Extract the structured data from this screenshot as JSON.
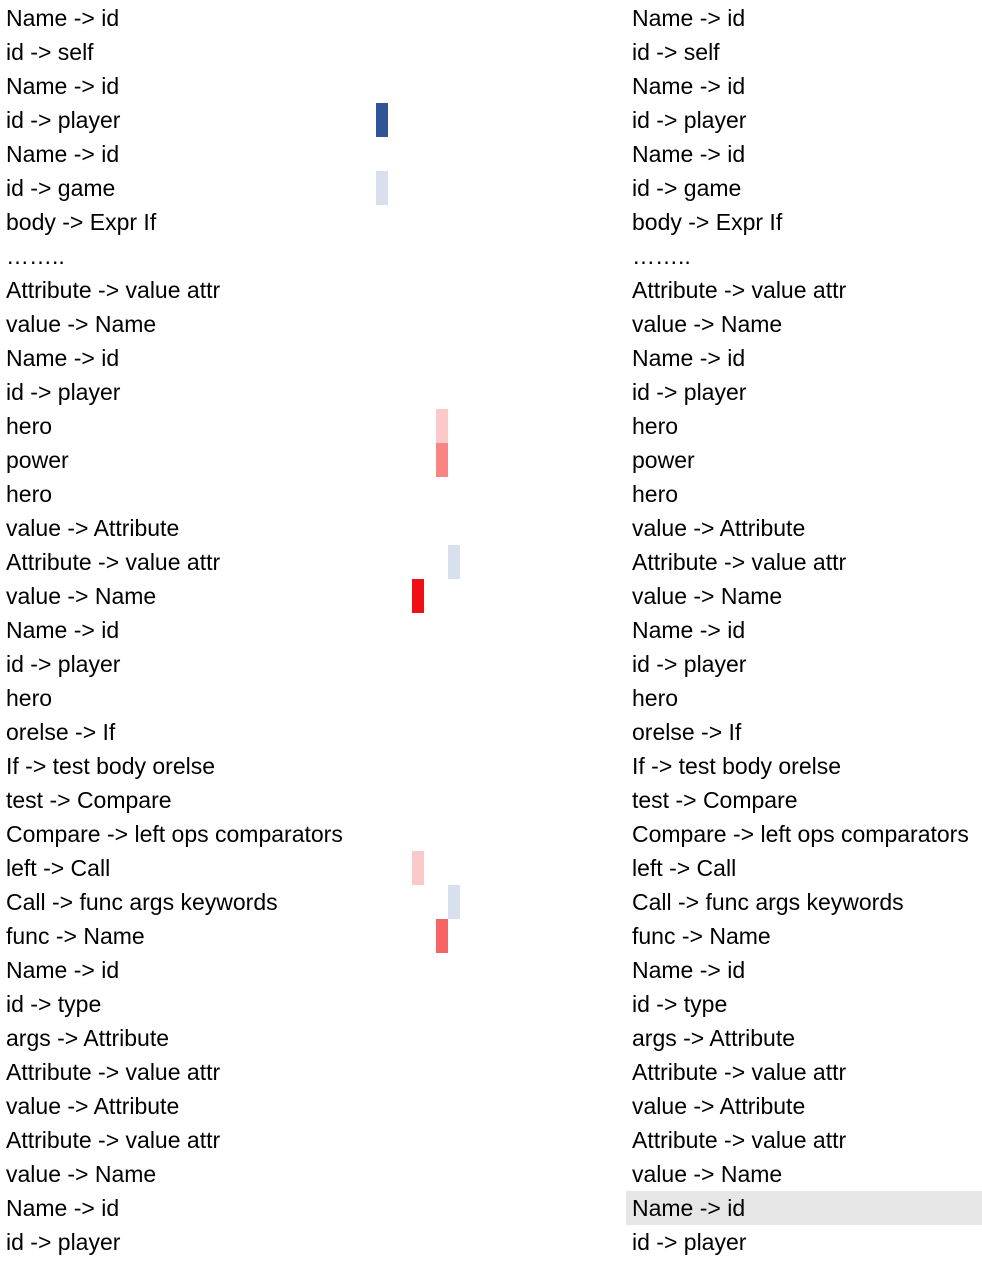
{
  "left_rules": [
    {
      "text": "Name -> id"
    },
    {
      "text": "id -> self"
    },
    {
      "text": "Name -> id"
    },
    {
      "text": "id -> player",
      "cells": [
        {
          "slot": 0,
          "color": "#2e5597"
        }
      ]
    },
    {
      "text": "Name -> id"
    },
    {
      "text": "id -> game",
      "cells": [
        {
          "slot": 0,
          "color": "#d9e0ed"
        }
      ]
    },
    {
      "text": "body -> Expr If"
    },
    {
      "text": "…….."
    },
    {
      "text": "Attribute -> value attr"
    },
    {
      "text": "value -> Name"
    },
    {
      "text": "Name -> id"
    },
    {
      "text": "id -> player"
    },
    {
      "text": "hero",
      "cells": [
        {
          "slot": 5,
          "color": "#fbc9c9"
        }
      ]
    },
    {
      "text": "power",
      "cells": [
        {
          "slot": 5,
          "color": "#f88484"
        }
      ]
    },
    {
      "text": "hero"
    },
    {
      "text": "value -> Attribute"
    },
    {
      "text": "Attribute -> value attr",
      "cells": [
        {
          "slot": 6,
          "color": "#d9e0ed"
        }
      ]
    },
    {
      "text": "value -> Name",
      "cells": [
        {
          "slot": 3,
          "color": "#ef0f14"
        }
      ]
    },
    {
      "text": "Name -> id"
    },
    {
      "text": "id -> player"
    },
    {
      "text": "hero"
    },
    {
      "text": "orelse -> If"
    },
    {
      "text": "If -> test body orelse"
    },
    {
      "text": "test -> Compare"
    },
    {
      "text": "Compare -> left ops comparators"
    },
    {
      "text": "left -> Call",
      "cells": [
        {
          "slot": 3,
          "color": "#fbc9c9"
        }
      ]
    },
    {
      "text": "Call -> func args keywords",
      "cells": [
        {
          "slot": 6,
          "color": "#d9e0ed"
        }
      ]
    },
    {
      "text": "func -> Name",
      "cells": [
        {
          "slot": 5,
          "color": "#f66466"
        }
      ]
    },
    {
      "text": "Name -> id"
    },
    {
      "text": "id -> type"
    },
    {
      "text": "args -> Attribute"
    },
    {
      "text": "Attribute -> value attr"
    },
    {
      "text": "value -> Attribute"
    },
    {
      "text": "Attribute -> value attr"
    },
    {
      "text": "value -> Name"
    },
    {
      "text": "Name -> id"
    },
    {
      "text": "id -> player"
    }
  ],
  "right_rules": [
    {
      "text": "Name -> id"
    },
    {
      "text": "id -> self"
    },
    {
      "text": "Name -> id"
    },
    {
      "text": "id -> player"
    },
    {
      "text": "Name -> id"
    },
    {
      "text": "id -> game"
    },
    {
      "text": "body -> Expr If"
    },
    {
      "text": "…….."
    },
    {
      "text": "Attribute -> value attr"
    },
    {
      "text": "value -> Name"
    },
    {
      "text": "Name -> id"
    },
    {
      "text": "id -> player"
    },
    {
      "text": "hero"
    },
    {
      "text": "power"
    },
    {
      "text": "hero"
    },
    {
      "text": "value -> Attribute"
    },
    {
      "text": "Attribute -> value attr"
    },
    {
      "text": "value -> Name"
    },
    {
      "text": "Name -> id"
    },
    {
      "text": "id -> player"
    },
    {
      "text": "hero"
    },
    {
      "text": "orelse -> If"
    },
    {
      "text": "If -> test body orelse"
    },
    {
      "text": "test -> Compare"
    },
    {
      "text": "Compare -> left ops comparators"
    },
    {
      "text": "left -> Call"
    },
    {
      "text": "Call -> func args keywords"
    },
    {
      "text": "func -> Name"
    },
    {
      "text": "Name -> id"
    },
    {
      "text": "id -> type"
    },
    {
      "text": "args -> Attribute"
    },
    {
      "text": "Attribute -> value attr"
    },
    {
      "text": "value -> Attribute"
    },
    {
      "text": "Attribute -> value attr"
    },
    {
      "text": "value -> Name"
    },
    {
      "text": "Name -> id",
      "highlighted": true
    },
    {
      "text": "id -> player"
    }
  ]
}
